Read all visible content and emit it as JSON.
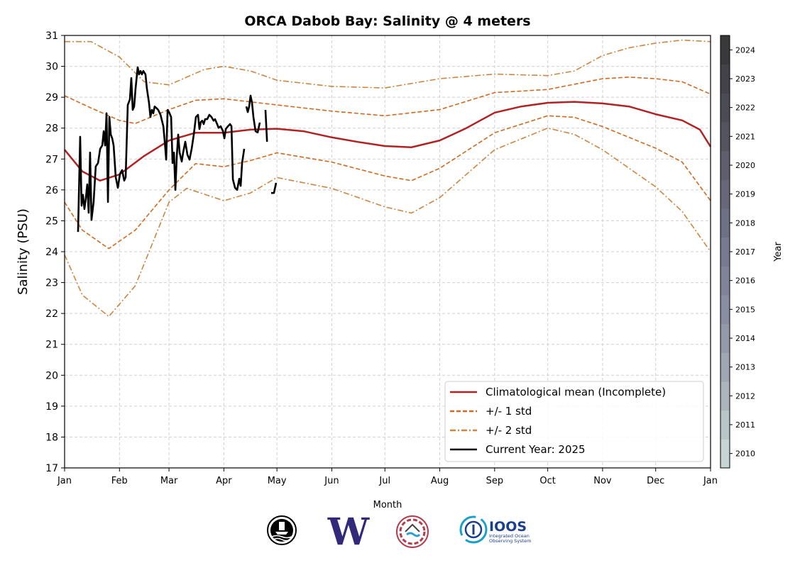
{
  "chart_data": {
    "type": "line",
    "title": "ORCA Dabob Bay: Salinity @ 4 meters",
    "xlabel": "Month",
    "ylabel": "Salinity (PSU)",
    "x_unit": "day of year",
    "xlim": [
      0,
      365
    ],
    "ylim": [
      17,
      31
    ],
    "grid": true,
    "legend_placement": "lower-right",
    "x_ticks": [
      {
        "label": "Jan",
        "day": 0
      },
      {
        "label": "Feb",
        "day": 31
      },
      {
        "label": "Mar",
        "day": 59
      },
      {
        "label": "Apr",
        "day": 90
      },
      {
        "label": "May",
        "day": 120
      },
      {
        "label": "Jun",
        "day": 151
      },
      {
        "label": "Jul",
        "day": 181
      },
      {
        "label": "Aug",
        "day": 212
      },
      {
        "label": "Sep",
        "day": 243
      },
      {
        "label": "Oct",
        "day": 273
      },
      {
        "label": "Nov",
        "day": 304
      },
      {
        "label": "Dec",
        "day": 334
      },
      {
        "label": "Jan",
        "day": 365
      }
    ],
    "y_ticks": [
      17,
      18,
      19,
      20,
      21,
      22,
      23,
      24,
      25,
      26,
      27,
      28,
      29,
      30,
      31
    ],
    "colorbar": {
      "label": "Year",
      "ticks": [
        2010,
        2011,
        2012,
        2013,
        2014,
        2015,
        2016,
        2017,
        2018,
        2019,
        2020,
        2021,
        2022,
        2023,
        2024
      ],
      "colors": [
        "#c6d4d4",
        "#b8c6c8",
        "#aab6bc",
        "#9ea8b2",
        "#939aaa",
        "#8a8ea3",
        "#80839a",
        "#777a90",
        "#6e7085",
        "#666779",
        "#5e5e6c",
        "#54545f",
        "#4b4b53",
        "#424248",
        "#39393c"
      ]
    },
    "series": [
      {
        "name": "Climatological mean (Incomplete)",
        "color": "#b22222",
        "style": "solid",
        "x": [
          0,
          10,
          20,
          31,
          45,
          59,
          74,
          90,
          105,
          120,
          135,
          151,
          166,
          181,
          196,
          212,
          227,
          243,
          258,
          273,
          288,
          304,
          319,
          334,
          349,
          359,
          365
        ],
        "y": [
          27.3,
          26.6,
          26.3,
          26.5,
          27.1,
          27.6,
          27.85,
          27.85,
          27.95,
          27.98,
          27.9,
          27.7,
          27.55,
          27.42,
          27.38,
          27.6,
          28.0,
          28.5,
          28.7,
          28.82,
          28.85,
          28.8,
          28.7,
          28.45,
          28.25,
          27.95,
          27.4
        ]
      },
      {
        "name": "+/- 1 std",
        "color": "#d2691e",
        "style": "dashed",
        "x": [
          0,
          15,
          31,
          40,
          59,
          74,
          90,
          120,
          151,
          181,
          212,
          243,
          273,
          304,
          319,
          334,
          349,
          365
        ],
        "y": [
          29.05,
          28.65,
          28.25,
          28.15,
          28.6,
          28.9,
          28.95,
          28.75,
          28.55,
          28.4,
          28.6,
          29.15,
          29.25,
          29.6,
          29.65,
          29.6,
          29.5,
          29.1
        ]
      },
      {
        "name": "",
        "color": "#d2691e",
        "style": "dashed",
        "x": [
          0,
          10,
          25,
          40,
          59,
          74,
          90,
          105,
          120,
          151,
          181,
          196,
          212,
          243,
          273,
          288,
          304,
          334,
          349,
          365
        ],
        "y": [
          25.6,
          24.7,
          24.1,
          24.7,
          26.0,
          26.85,
          26.75,
          26.95,
          27.2,
          26.9,
          26.45,
          26.3,
          26.7,
          27.85,
          28.4,
          28.35,
          28.05,
          27.35,
          26.9,
          25.65
        ]
      },
      {
        "name": "+/- 2 std",
        "color": "#cd853f",
        "style": "dashdot",
        "x": [
          0,
          15,
          31,
          45,
          59,
          79,
          90,
          105,
          120,
          151,
          181,
          212,
          243,
          273,
          288,
          304,
          319,
          334,
          349,
          365
        ],
        "y": [
          30.8,
          30.8,
          30.3,
          29.5,
          29.4,
          29.9,
          30.0,
          29.85,
          29.55,
          29.35,
          29.3,
          29.6,
          29.75,
          29.7,
          29.85,
          30.35,
          30.6,
          30.75,
          30.85,
          30.8
        ]
      },
      {
        "name": "",
        "color": "#cd853f",
        "style": "dashdot",
        "x": [
          0,
          10,
          25,
          40,
          59,
          69,
          90,
          105,
          120,
          151,
          181,
          196,
          212,
          243,
          273,
          288,
          304,
          334,
          349,
          365
        ],
        "y": [
          23.9,
          22.6,
          21.9,
          22.9,
          25.6,
          26.05,
          25.65,
          25.9,
          26.4,
          26.05,
          25.45,
          25.25,
          25.75,
          27.3,
          28.0,
          27.8,
          27.3,
          26.1,
          25.3,
          24.0
        ]
      }
    ],
    "current_year": {
      "name": "Current Year: 2025",
      "color": "#000000",
      "segments": [
        {
          "x": [
            7.6,
            8.8,
            9.6,
            10.4,
            11.2,
            12.0,
            12.8,
            13.6,
            14.4,
            15.2,
            16.4,
            17.6,
            18.9,
            20.1,
            21.3,
            22.1,
            22.9,
            23.7,
            24.5,
            25.3,
            26.1,
            26.9,
            27.7,
            28.9,
            30.1,
            31.3,
            32.5,
            33.7,
            34.5,
            35.7,
            36.9,
            37.7,
            38.5,
            39.3,
            40.1,
            41.3,
            42.1,
            42.9,
            43.7,
            44.5,
            45.7,
            46.5,
            47.7,
            48.5,
            49.3,
            50.1,
            50.9,
            51.7,
            52.9,
            54.2,
            55.8,
            56.6,
            57.4,
            58.2,
            59.0,
            60.2,
            61.0,
            61.8,
            62.6,
            63.4,
            64.2,
            65.0,
            66.2,
            67.0,
            68.2,
            69.4,
            70.6,
            71.8,
            73.0,
            74.2,
            75.4,
            76.2,
            77.0,
            77.8,
            78.6,
            79.4,
            80.6,
            81.8,
            83.0,
            84.2,
            85.0,
            86.2,
            87.0,
            88.2,
            89.5,
            90.3,
            91.1,
            92.3,
            93.5,
            94.3,
            95.1,
            96.3,
            97.5,
            98.7,
            99.5,
            100.3,
            101.5
          ],
          "y": [
            24.64,
            27.72,
            25.49,
            25.84,
            25.38,
            25.72,
            26.18,
            25.26,
            27.21,
            25.03,
            25.61,
            26.76,
            26.87,
            27.33,
            27.44,
            27.9,
            27.44,
            28.48,
            25.61,
            28.36,
            27.79,
            27.67,
            27.44,
            26.41,
            26.07,
            26.52,
            26.64,
            26.3,
            26.41,
            28.75,
            28.93,
            29.62,
            28.59,
            28.7,
            29.28,
            29.97,
            29.74,
            29.85,
            29.74,
            29.85,
            29.74,
            29.28,
            28.82,
            28.36,
            28.59,
            28.48,
            28.7,
            28.66,
            28.59,
            28.43,
            28.06,
            27.56,
            26.98,
            28.59,
            28.52,
            28.36,
            26.87,
            27.21,
            26.0,
            27.09,
            27.79,
            27.21,
            26.92,
            27.21,
            27.56,
            27.14,
            26.98,
            27.33,
            27.79,
            28.36,
            28.43,
            27.97,
            28.2,
            28.24,
            28.13,
            28.29,
            28.29,
            28.43,
            28.36,
            28.24,
            28.29,
            28.13,
            28.01,
            28.06,
            27.9,
            27.67,
            27.97,
            28.06,
            28.13,
            28.06,
            26.34,
            26.07,
            26.0,
            26.36,
            26.13,
            26.87,
            27.33
          ]
        },
        {
          "x": [
            102.7,
            103.5,
            104.3,
            105.1,
            105.9,
            106.7,
            107.9,
            109.1,
            110.3
          ],
          "y": [
            28.7,
            28.52,
            28.7,
            29.05,
            28.82,
            28.36,
            27.9,
            27.86,
            28.18
          ]
        },
        {
          "x": [
            113.5,
            114.4
          ],
          "y": [
            28.59,
            27.56
          ]
        },
        {
          "x": [
            116.7,
            118.3,
            119.5
          ],
          "y": [
            25.9,
            25.9,
            26.23
          ]
        }
      ]
    },
    "legend": [
      {
        "label": "Climatological mean (Incomplete)",
        "color": "#b22222",
        "style": "solid"
      },
      {
        "label": "+/- 1 std",
        "color": "#d2691e",
        "style": "dashed"
      },
      {
        "label": "+/- 2 std",
        "color": "#cd853f",
        "style": "dashdot"
      },
      {
        "label": "Current Year: 2025",
        "color": "#000000",
        "style": "solid"
      }
    ]
  },
  "logos": [
    {
      "name": "orca-buoy-logo",
      "text": ""
    },
    {
      "name": "uw-logo",
      "text": "W"
    },
    {
      "name": "nanoos-logo",
      "text": ""
    },
    {
      "name": "ioos-logo",
      "text": "IOOS",
      "subtext1": "Integrated Ocean",
      "subtext2": "Observing System"
    }
  ]
}
